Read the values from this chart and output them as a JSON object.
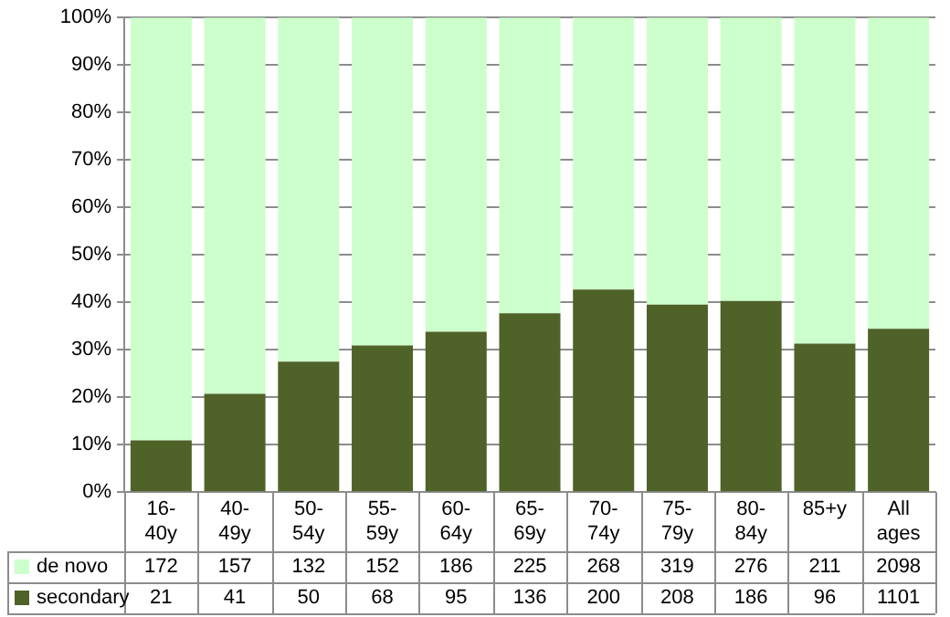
{
  "chart_data": {
    "type": "bar",
    "stacked": true,
    "categories": [
      "16-40y",
      "40-49y",
      "50-54y",
      "55-59y",
      "60-64y",
      "65-69y",
      "70-74y",
      "75-79y",
      "80-84y",
      "85+y",
      "All ages"
    ],
    "series": [
      {
        "name": "secondary",
        "color": "#4f6228",
        "values": [
          10.9,
          20.7,
          27.5,
          30.9,
          33.8,
          37.7,
          42.7,
          39.5,
          40.3,
          31.3,
          34.4
        ]
      },
      {
        "name": "de novo",
        "color": "#ccffcc",
        "values": [
          89.1,
          79.3,
          72.5,
          69.1,
          66.2,
          62.3,
          57.3,
          60.5,
          59.7,
          68.7,
          65.6
        ]
      }
    ],
    "annotations": [
      "172",
      "157",
      "132",
      "152",
      "186",
      "225",
      "268",
      "319",
      "276",
      "211",
      "2098",
      "21",
      "41",
      "50",
      "68",
      "95",
      "136",
      "200",
      "208",
      "186",
      "96",
      "1101"
    ],
    "ylim": [
      0,
      100
    ],
    "yticks": [
      {
        "value": 0,
        "label": "0%"
      },
      {
        "value": 10,
        "label": "10%"
      },
      {
        "value": 20,
        "label": "20%"
      },
      {
        "value": 30,
        "label": "30%"
      },
      {
        "value": 40,
        "label": "40%"
      },
      {
        "value": 50,
        "label": "50%"
      },
      {
        "value": 60,
        "label": "60%"
      },
      {
        "value": 70,
        "label": "70%"
      },
      {
        "value": 80,
        "label": "80%"
      },
      {
        "value": 90,
        "label": "90%"
      },
      {
        "value": 100,
        "label": "100%"
      }
    ],
    "grid": "y",
    "legend": "bottom left"
  }
}
